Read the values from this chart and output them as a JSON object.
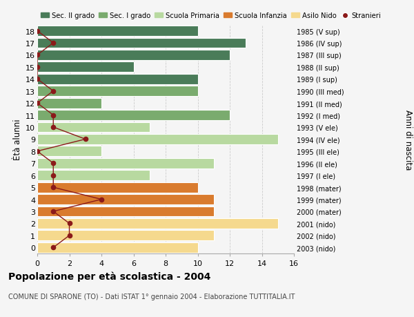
{
  "ages": [
    18,
    17,
    16,
    15,
    14,
    13,
    12,
    11,
    10,
    9,
    8,
    7,
    6,
    5,
    4,
    3,
    2,
    1,
    0
  ],
  "years": [
    "1985 (V sup)",
    "1986 (IV sup)",
    "1987 (III sup)",
    "1988 (II sup)",
    "1989 (I sup)",
    "1990 (III med)",
    "1991 (II med)",
    "1992 (I med)",
    "1993 (V ele)",
    "1994 (IV ele)",
    "1995 (III ele)",
    "1996 (II ele)",
    "1997 (I ele)",
    "1998 (mater)",
    "1999 (mater)",
    "2000 (mater)",
    "2001 (nido)",
    "2002 (nido)",
    "2003 (nido)"
  ],
  "bar_values": [
    10,
    13,
    12,
    6,
    10,
    10,
    4,
    12,
    7,
    15,
    4,
    11,
    7,
    10,
    11,
    11,
    15,
    11,
    10
  ],
  "bar_colors": [
    "#4a7c59",
    "#4a7c59",
    "#4a7c59",
    "#4a7c59",
    "#4a7c59",
    "#7aab6e",
    "#7aab6e",
    "#7aab6e",
    "#b8d9a0",
    "#b8d9a0",
    "#b8d9a0",
    "#b8d9a0",
    "#b8d9a0",
    "#d97b2e",
    "#d97b2e",
    "#d97b2e",
    "#f5d98e",
    "#f5d98e",
    "#f5d98e"
  ],
  "stranieri_values": [
    0,
    1,
    0,
    0,
    0,
    1,
    0,
    1,
    1,
    3,
    0,
    1,
    1,
    1,
    4,
    1,
    2,
    2,
    1
  ],
  "legend_labels": [
    "Sec. II grado",
    "Sec. I grado",
    "Scuola Primaria",
    "Scuola Infanzia",
    "Asilo Nido",
    "Stranieri"
  ],
  "legend_colors": [
    "#4a7c59",
    "#7aab6e",
    "#b8d9a0",
    "#d97b2e",
    "#f5d98e",
    "#8b1a1a"
  ],
  "title": "Popolazione per età scolastica - 2004",
  "subtitle": "COMUNE DI SPARONE (TO) - Dati ISTAT 1° gennaio 2004 - Elaborazione TUTTITALIA.IT",
  "ylabel_left": "Ètà alunni",
  "ylabel_right": "Anni di nascita",
  "xlim": [
    0,
    16
  ],
  "bg_color": "#f5f5f5",
  "stranieri_color": "#8b1a1a"
}
